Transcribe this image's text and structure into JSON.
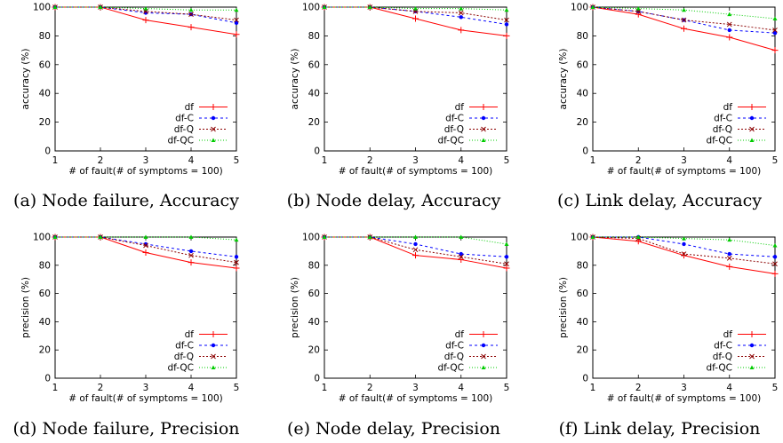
{
  "legend": [
    {
      "name": "df",
      "color": "#ff0000",
      "dash": "",
      "marker": "plus"
    },
    {
      "name": "df-C",
      "color": "#0000ff",
      "dash": "3,3",
      "marker": "dot"
    },
    {
      "name": "df-Q",
      "color": "#8b0000",
      "dash": "2,2",
      "marker": "x"
    },
    {
      "name": "df-QC",
      "color": "#00cc00",
      "dash": "1,2",
      "marker": "tri"
    }
  ],
  "chart_data": [
    {
      "type": "line",
      "caption": "(a) Node failure, Accuracy",
      "xlabel": "# of fault(# of symptoms = 100)",
      "ylabel": "accuracy (%)",
      "x": [
        1,
        2,
        3,
        4,
        5
      ],
      "xlim": [
        1,
        5
      ],
      "ylim": [
        0,
        100
      ],
      "xticks": [
        "1",
        "2",
        "3",
        "4",
        "5"
      ],
      "yticks": [
        "0",
        "20",
        "40",
        "60",
        "80",
        "100"
      ],
      "legend_position": "bottom-right",
      "series": [
        {
          "name": "df",
          "values": [
            100,
            100,
            91,
            86,
            81
          ]
        },
        {
          "name": "df-C",
          "values": [
            100,
            100,
            96,
            95,
            89
          ]
        },
        {
          "name": "df-Q",
          "values": [
            100,
            100,
            97,
            95,
            91
          ]
        },
        {
          "name": "df-QC",
          "values": [
            100,
            100,
            99,
            98,
            98
          ]
        }
      ]
    },
    {
      "type": "line",
      "caption": "(b) Node delay, Accuracy",
      "xlabel": "# of fault(# of symptoms = 100)",
      "ylabel": "accuracy (%)",
      "x": [
        1,
        2,
        3,
        4,
        5
      ],
      "xlim": [
        1,
        5
      ],
      "ylim": [
        0,
        100
      ],
      "xticks": [
        "1",
        "2",
        "3",
        "4",
        "5"
      ],
      "yticks": [
        "0",
        "20",
        "40",
        "60",
        "80",
        "100"
      ],
      "legend_position": "bottom-right",
      "series": [
        {
          "name": "df",
          "values": [
            100,
            100,
            92,
            84,
            80
          ]
        },
        {
          "name": "df-C",
          "values": [
            100,
            100,
            97,
            93,
            88
          ]
        },
        {
          "name": "df-Q",
          "values": [
            100,
            100,
            97,
            96,
            91
          ]
        },
        {
          "name": "df-QC",
          "values": [
            100,
            100,
            99,
            99,
            98
          ]
        }
      ]
    },
    {
      "type": "line",
      "caption": "(c) Link delay, Accuracy",
      "xlabel": "# of fault(# of symptoms = 100)",
      "ylabel": "accuracy (%)",
      "x": [
        1,
        2,
        3,
        4,
        5
      ],
      "xlim": [
        1,
        5
      ],
      "ylim": [
        0,
        100
      ],
      "xticks": [
        "1",
        "2",
        "3",
        "4",
        "5"
      ],
      "yticks": [
        "0",
        "20",
        "40",
        "60",
        "80",
        "100"
      ],
      "legend_position": "bottom-right",
      "series": [
        {
          "name": "df",
          "values": [
            100,
            95,
            85,
            79,
            70
          ]
        },
        {
          "name": "df-C",
          "values": [
            100,
            97,
            91,
            84,
            82
          ]
        },
        {
          "name": "df-Q",
          "values": [
            100,
            97,
            91,
            88,
            84
          ]
        },
        {
          "name": "df-QC",
          "values": [
            100,
            99,
            98,
            95,
            92
          ]
        }
      ]
    },
    {
      "type": "line",
      "caption": "(d) Node failure, Precision",
      "xlabel": "# of fault(# of symptoms = 100)",
      "ylabel": "precision (%)",
      "x": [
        1,
        2,
        3,
        4,
        5
      ],
      "xlim": [
        1,
        5
      ],
      "ylim": [
        0,
        100
      ],
      "xticks": [
        "1",
        "2",
        "3",
        "4",
        "5"
      ],
      "yticks": [
        "0",
        "20",
        "40",
        "60",
        "80",
        "100"
      ],
      "legend_position": "bottom-right",
      "series": [
        {
          "name": "df",
          "values": [
            100,
            100,
            89,
            82,
            78
          ]
        },
        {
          "name": "df-C",
          "values": [
            100,
            100,
            95,
            90,
            86
          ]
        },
        {
          "name": "df-Q",
          "values": [
            100,
            100,
            94,
            87,
            82
          ]
        },
        {
          "name": "df-QC",
          "values": [
            100,
            100,
            100,
            100,
            98
          ]
        }
      ]
    },
    {
      "type": "line",
      "caption": "(e) Node delay, Precision",
      "xlabel": "# of fault(# of symptoms = 100)",
      "ylabel": "precision (%)",
      "x": [
        1,
        2,
        3,
        4,
        5
      ],
      "xlim": [
        1,
        5
      ],
      "ylim": [
        0,
        100
      ],
      "xticks": [
        "1",
        "2",
        "3",
        "4",
        "5"
      ],
      "yticks": [
        "0",
        "20",
        "40",
        "60",
        "80",
        "100"
      ],
      "legend_position": "bottom-right",
      "series": [
        {
          "name": "df",
          "values": [
            100,
            100,
            87,
            84,
            78
          ]
        },
        {
          "name": "df-C",
          "values": [
            100,
            100,
            95,
            88,
            86
          ]
        },
        {
          "name": "df-Q",
          "values": [
            100,
            100,
            91,
            86,
            81
          ]
        },
        {
          "name": "df-QC",
          "values": [
            100,
            100,
            100,
            100,
            95
          ]
        }
      ]
    },
    {
      "type": "line",
      "caption": "(f) Link delay, Precision",
      "xlabel": "# of fault(# of symptoms = 100)",
      "ylabel": "precision (%)",
      "x": [
        1,
        2,
        3,
        4,
        5
      ],
      "xlim": [
        1,
        5
      ],
      "ylim": [
        0,
        100
      ],
      "xticks": [
        "1",
        "2",
        "3",
        "4",
        "5"
      ],
      "yticks": [
        "0",
        "20",
        "40",
        "60",
        "80",
        "100"
      ],
      "legend_position": "bottom-right",
      "series": [
        {
          "name": "df",
          "values": [
            100,
            97,
            87,
            79,
            74
          ]
        },
        {
          "name": "df-C",
          "values": [
            100,
            100,
            95,
            88,
            86
          ]
        },
        {
          "name": "df-Q",
          "values": [
            100,
            99,
            88,
            85,
            81
          ]
        },
        {
          "name": "df-QC",
          "values": [
            100,
            100,
            99,
            98,
            94
          ]
        }
      ]
    }
  ]
}
